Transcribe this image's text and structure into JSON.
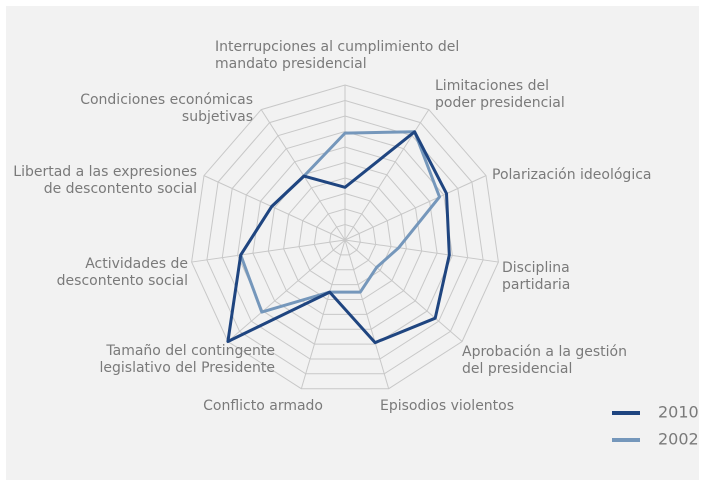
{
  "chart_data": {
    "type": "radar",
    "categories": [
      [
        "Interrupciones al cumplimiento del",
        "mandato presidencial"
      ],
      [
        "Limitaciones del",
        "poder presidencial"
      ],
      [
        "Polarización ideológica"
      ],
      [
        "Disciplina",
        "partidaria"
      ],
      [
        "Aprobación a la gestión",
        "del presidencial"
      ],
      [
        "Episodios violentos"
      ],
      [
        "Conflicto armado"
      ],
      [
        "Tamaño del contingente",
        "legislativo del Presidente"
      ],
      [
        "Actividades de",
        "descontento social"
      ],
      [
        "Libertad a las expresiones",
        "de descontento social"
      ],
      [
        "Condiciones económicas",
        "subjetivas"
      ]
    ],
    "series": [
      {
        "name": "2010",
        "color": "#1f4580",
        "values": [
          3.4,
          8.3,
          7.2,
          6.8,
          7.7,
          6.9,
          3.5,
          10,
          6.8,
          5.2,
          4.9
        ]
      },
      {
        "name": "2002",
        "color": "#7597bb",
        "values": [
          6.9,
          8.3,
          6.7,
          3.5,
          2.7,
          3.5,
          3.5,
          7.1,
          6.8,
          5.2,
          4.9
        ]
      }
    ],
    "ylim": [
      0,
      10
    ],
    "yticks": [
      1,
      2,
      3,
      4,
      5,
      6,
      7,
      8,
      9,
      10
    ],
    "grid": true,
    "legend": "lower right"
  }
}
